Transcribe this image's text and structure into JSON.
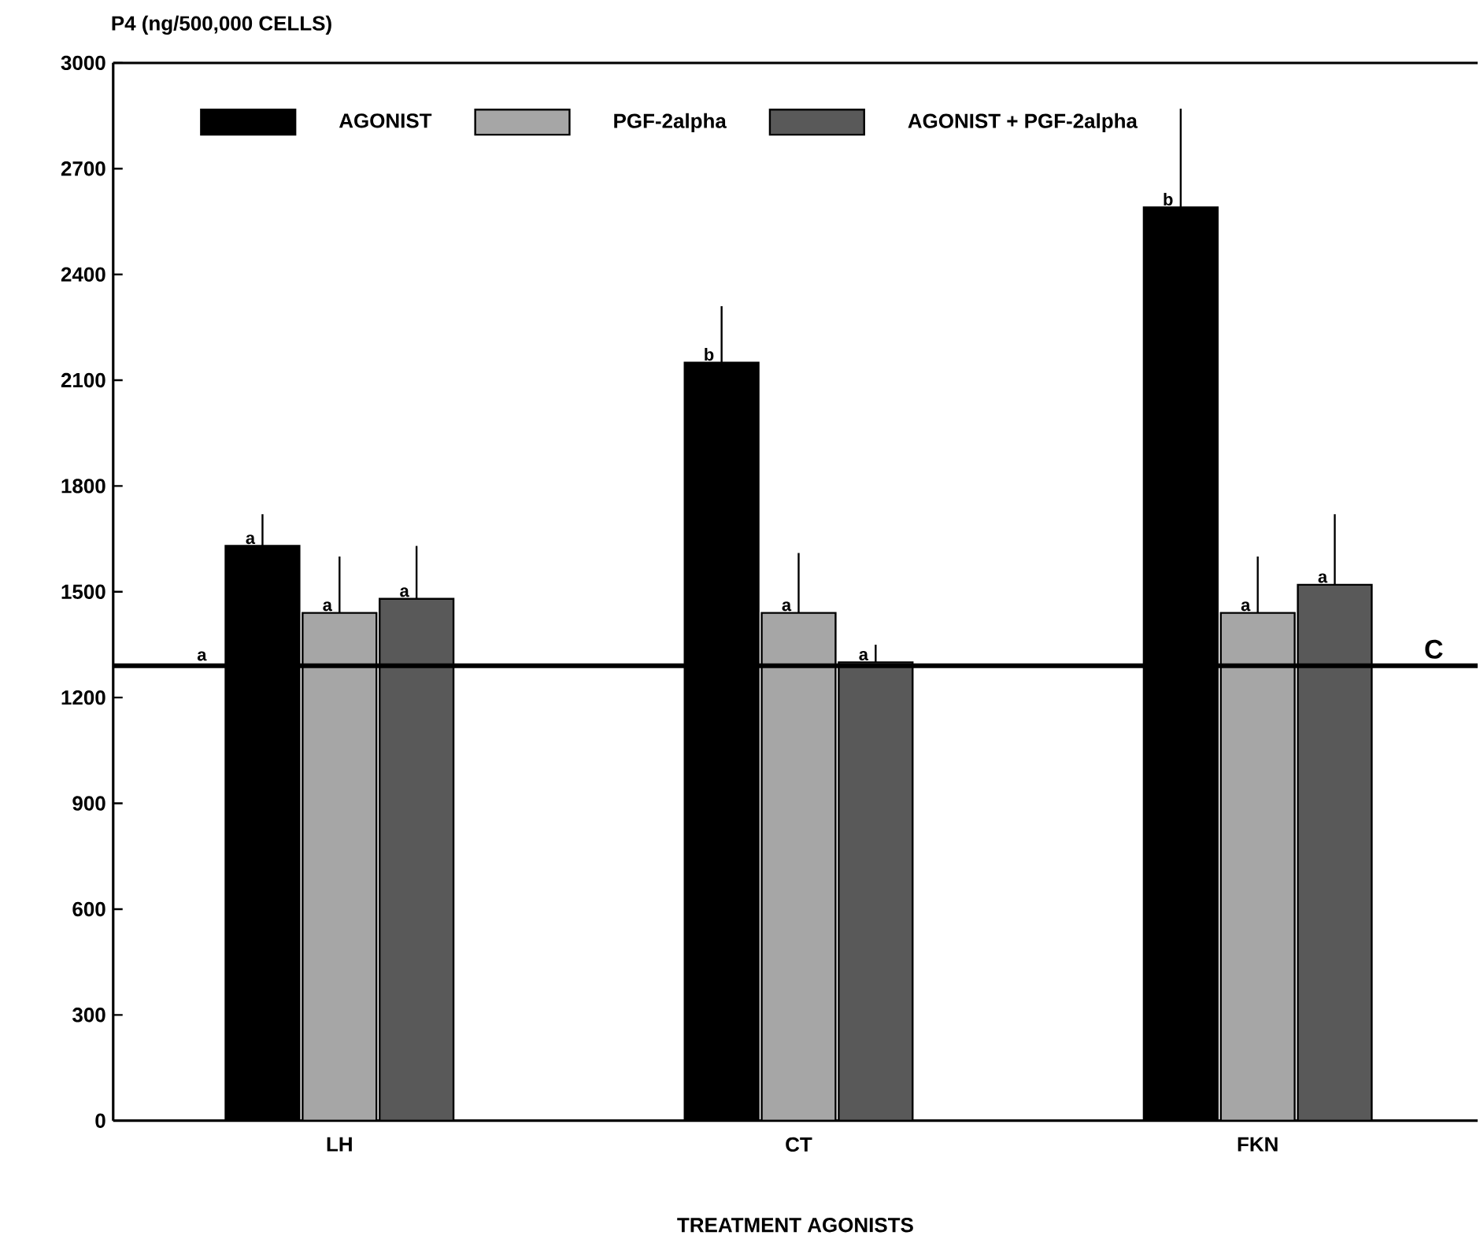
{
  "chart_data": {
    "type": "bar",
    "ylabel": "P4 (ng/500,000 CELLS)",
    "xlabel": "TREATMENT AGONISTS",
    "categories": [
      "LH",
      "CT",
      "FKN"
    ],
    "series": [
      {
        "name": "AGONIST",
        "color": "#000000",
        "values": [
          1630,
          2150,
          2590
        ],
        "errors": [
          [
            1630,
            1720
          ],
          [
            2150,
            2310
          ],
          [
            2590,
            2870
          ]
        ]
      },
      {
        "name": "PGF-2alpha",
        "color": "#a6a6a6",
        "values": [
          1440,
          1440,
          1440
        ],
        "errors": [
          [
            1440,
            1600
          ],
          [
            1440,
            1610
          ],
          [
            1440,
            1600
          ]
        ]
      },
      {
        "name": "AGONIST + PGF-2alpha",
        "color": "#595959",
        "values": [
          1480,
          1300,
          1520
        ],
        "errors": [
          [
            1480,
            1630
          ],
          [
            1300,
            1350
          ],
          [
            1520,
            1720
          ]
        ]
      }
    ],
    "ylim": [
      0,
      3000
    ],
    "yticks": [
      0,
      300,
      600,
      900,
      1200,
      1500,
      1800,
      2100,
      2400,
      2700,
      3000
    ],
    "ref_lines": [
      {
        "axis": "y",
        "value": 1290,
        "label": "C",
        "color": "#000000"
      }
    ],
    "annotations": [
      "a",
      "a",
      "a",
      "a",
      "b",
      "a",
      "a",
      "b",
      "a",
      "a"
    ],
    "legend": "top left",
    "grid": false
  }
}
